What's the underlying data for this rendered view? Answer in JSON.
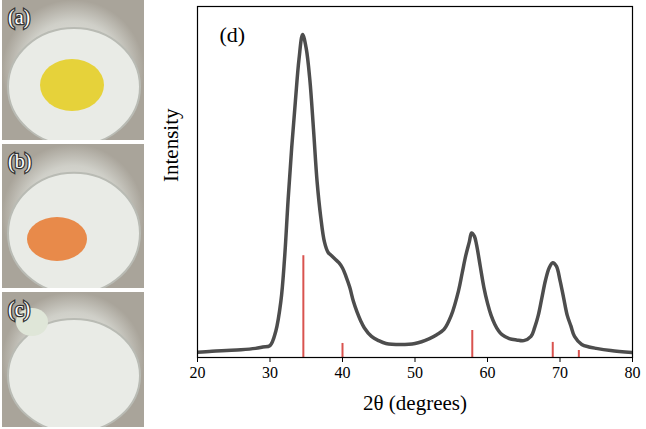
{
  "chart_data": {
    "type": "line",
    "panel_label": "(d)",
    "x_label": "2θ (degrees)",
    "y_label": "Intensity",
    "xlim": [
      20,
      80
    ],
    "xticks": [
      20,
      30,
      40,
      50,
      60,
      70,
      80
    ],
    "ylim": [
      0,
      100
    ],
    "yticks": [],
    "tick_labels": "x",
    "grid": false,
    "series": [
      {
        "type": "line",
        "color": "#4d4d4d",
        "x": [
          20,
          22,
          24,
          26,
          28,
          29,
          30,
          30.8,
          31.5,
          32,
          32.5,
          33,
          33.5,
          34,
          34.5,
          35,
          35.5,
          36,
          36.5,
          37,
          37.5,
          38,
          38.5,
          39,
          39.5,
          40,
          40.5,
          41,
          41.5,
          42,
          42.5,
          43,
          44,
          45,
          46,
          48,
          50,
          52,
          53,
          54,
          55,
          56,
          56.5,
          57,
          57.5,
          57.8,
          58.2,
          58.5,
          59,
          59.5,
          60,
          60.5,
          61,
          61.5,
          62,
          63,
          64,
          65,
          66,
          66.5,
          67,
          67.5,
          68,
          68.5,
          69,
          69.5,
          70,
          70.5,
          71,
          71.5,
          72,
          73,
          74,
          75,
          77,
          80
        ],
        "values": [
          1.5,
          1.8,
          2.0,
          2.2,
          2.6,
          3.0,
          3.4,
          7.5,
          16,
          28,
          45,
          60,
          73,
          85,
          92,
          88,
          79,
          65,
          50,
          40,
          33,
          30,
          29,
          28,
          27,
          25.5,
          23,
          20,
          16,
          13,
          10.5,
          8.5,
          6,
          4.8,
          4,
          3.7,
          4,
          5.4,
          6.5,
          8,
          12,
          19,
          24,
          29,
          33,
          35.5,
          34.5,
          32,
          26,
          20,
          15.5,
          12,
          9.5,
          7.7,
          6.5,
          5.4,
          5,
          4.8,
          6,
          8.5,
          12,
          17,
          22,
          25.5,
          27,
          26,
          22,
          17,
          12,
          9,
          6,
          3.7,
          3,
          2.6,
          2,
          1.4
        ]
      },
      {
        "type": "stem",
        "color": "#d9534f",
        "x": [
          34.6,
          40.0,
          57.9,
          69.0,
          72.6
        ],
        "values": [
          29,
          4,
          7.7,
          4.3,
          2
        ]
      }
    ]
  },
  "photos": [
    {
      "label": "(a)"
    },
    {
      "label": "(b)"
    },
    {
      "label": "(c)"
    }
  ]
}
